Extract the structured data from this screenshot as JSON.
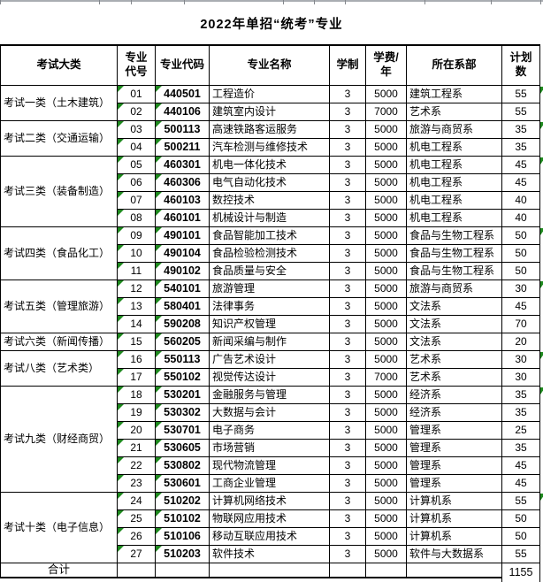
{
  "title": "2022年单招“统考”专业",
  "columns": [
    "考试大类",
    "专业代号",
    "专业代码",
    "专业名称",
    "学制",
    "学费/年",
    "所在系部",
    "计划数"
  ],
  "categories": [
    {
      "label": "考试一类（土木建筑）",
      "start": 1,
      "span": 2
    },
    {
      "label": "考试二类（交通运输）",
      "start": 3,
      "span": 2
    },
    {
      "label": "考试三类（装备制造）",
      "start": 5,
      "span": 4
    },
    {
      "label": "考试四类（食品化工）",
      "start": 9,
      "span": 3
    },
    {
      "label": "考试五类（管理旅游）",
      "start": 12,
      "span": 3
    },
    {
      "label": "考试六类（新闻传播）",
      "start": 15,
      "span": 1
    },
    {
      "label": "考试八类（艺术类）",
      "start": 16,
      "span": 2
    },
    {
      "label": "考试九类（财经商贸）",
      "start": 18,
      "span": 6
    },
    {
      "label": "考试十类（电子信息）",
      "start": 24,
      "span": 4
    }
  ],
  "rows": [
    {
      "no": "01",
      "code": "440501",
      "major": "工程造价",
      "years": "3",
      "tuition": "5000",
      "dept": "建筑工程系",
      "plan": "55"
    },
    {
      "no": "02",
      "code": "440106",
      "major": "建筑室内设计",
      "years": "3",
      "tuition": "7000",
      "dept": "艺术系",
      "plan": "55"
    },
    {
      "no": "03",
      "code": "500113",
      "major": "高速铁路客运服务",
      "years": "3",
      "tuition": "5000",
      "dept": "旅游与商贸系",
      "plan": "35"
    },
    {
      "no": "04",
      "code": "500211",
      "major": "汽车检测与维修技术",
      "years": "3",
      "tuition": "5000",
      "dept": "机电工程系",
      "plan": "35"
    },
    {
      "no": "05",
      "code": "460301",
      "major": "机电一体化技术",
      "years": "3",
      "tuition": "5000",
      "dept": "机电工程系",
      "plan": "45"
    },
    {
      "no": "06",
      "code": "460306",
      "major": "电气自动化技术",
      "years": "3",
      "tuition": "5000",
      "dept": "机电工程系",
      "plan": "45"
    },
    {
      "no": "07",
      "code": "460103",
      "major": "数控技术",
      "years": "3",
      "tuition": "5000",
      "dept": "机电工程系",
      "plan": "40"
    },
    {
      "no": "08",
      "code": "460101",
      "major": "机械设计与制造",
      "years": "3",
      "tuition": "5000",
      "dept": "机电工程系",
      "plan": "40"
    },
    {
      "no": "09",
      "code": "490101",
      "major": "食品智能加工技术",
      "years": "3",
      "tuition": "5000",
      "dept": "食品与生物工程系",
      "plan": "50"
    },
    {
      "no": "10",
      "code": "490104",
      "major": "食品检验检测技术",
      "years": "3",
      "tuition": "5000",
      "dept": "食品与生物工程系",
      "plan": "50"
    },
    {
      "no": "11",
      "code": "490102",
      "major": "食品质量与安全",
      "years": "3",
      "tuition": "5000",
      "dept": "食品与生物工程系",
      "plan": "50"
    },
    {
      "no": "12",
      "code": "540101",
      "major": "旅游管理",
      "years": "3",
      "tuition": "5000",
      "dept": "旅游与商贸系",
      "plan": "30"
    },
    {
      "no": "13",
      "code": "580401",
      "major": "法律事务",
      "years": "3",
      "tuition": "5000",
      "dept": "文法系",
      "plan": "45"
    },
    {
      "no": "14",
      "code": "590208",
      "major": "知识产权管理",
      "years": "3",
      "tuition": "5000",
      "dept": "文法系",
      "plan": "70"
    },
    {
      "no": "15",
      "code": "560205",
      "major": "新闻采编与制作",
      "years": "3",
      "tuition": "5000",
      "dept": "文法系",
      "plan": "20"
    },
    {
      "no": "16",
      "code": "550113",
      "major": "广告艺术设计",
      "years": "3",
      "tuition": "5000",
      "dept": "艺术系",
      "plan": "30"
    },
    {
      "no": "17",
      "code": "550102",
      "major": "视觉传达设计",
      "years": "3",
      "tuition": "7000",
      "dept": "艺术系",
      "plan": "30"
    },
    {
      "no": "18",
      "code": "530201",
      "major": "金融服务与管理",
      "years": "3",
      "tuition": "5000",
      "dept": "经济系",
      "plan": "35"
    },
    {
      "no": "19",
      "code": "530302",
      "major": "大数据与会计",
      "years": "3",
      "tuition": "5000",
      "dept": "经济系",
      "plan": "35"
    },
    {
      "no": "20",
      "code": "530701",
      "major": "电子商务",
      "years": "3",
      "tuition": "5000",
      "dept": "管理系",
      "plan": "25"
    },
    {
      "no": "21",
      "code": "530605",
      "major": "市场营销",
      "years": "3",
      "tuition": "5000",
      "dept": "管理系",
      "plan": "35"
    },
    {
      "no": "22",
      "code": "530802",
      "major": "现代物流管理",
      "years": "3",
      "tuition": "5000",
      "dept": "管理系",
      "plan": "45"
    },
    {
      "no": "23",
      "code": "530601",
      "major": "工商企业管理",
      "years": "3",
      "tuition": "5000",
      "dept": "管理系",
      "plan": "45"
    },
    {
      "no": "24",
      "code": "510202",
      "major": "计算机网络技术",
      "years": "3",
      "tuition": "5000",
      "dept": "计算机系",
      "plan": "55"
    },
    {
      "no": "25",
      "code": "510102",
      "major": "物联网应用技术",
      "years": "3",
      "tuition": "5000",
      "dept": "计算机系",
      "plan": "50"
    },
    {
      "no": "26",
      "code": "510106",
      "major": "移动互联应用技术",
      "years": "3",
      "tuition": "5000",
      "dept": "计算机系",
      "plan": "50"
    },
    {
      "no": "27",
      "code": "510203",
      "major": "软件技术",
      "years": "3",
      "tuition": "5000",
      "dept": "软件与大数据系",
      "plan": "55"
    }
  ],
  "footer": {
    "label": "合计",
    "total": "1155"
  },
  "edge_marks_rows": [
    1,
    3,
    5,
    9,
    12,
    16,
    18,
    24
  ],
  "colors": {
    "flag_green": "#1f8a1f",
    "border": "#000000",
    "top_strip": "#a9adb2"
  }
}
